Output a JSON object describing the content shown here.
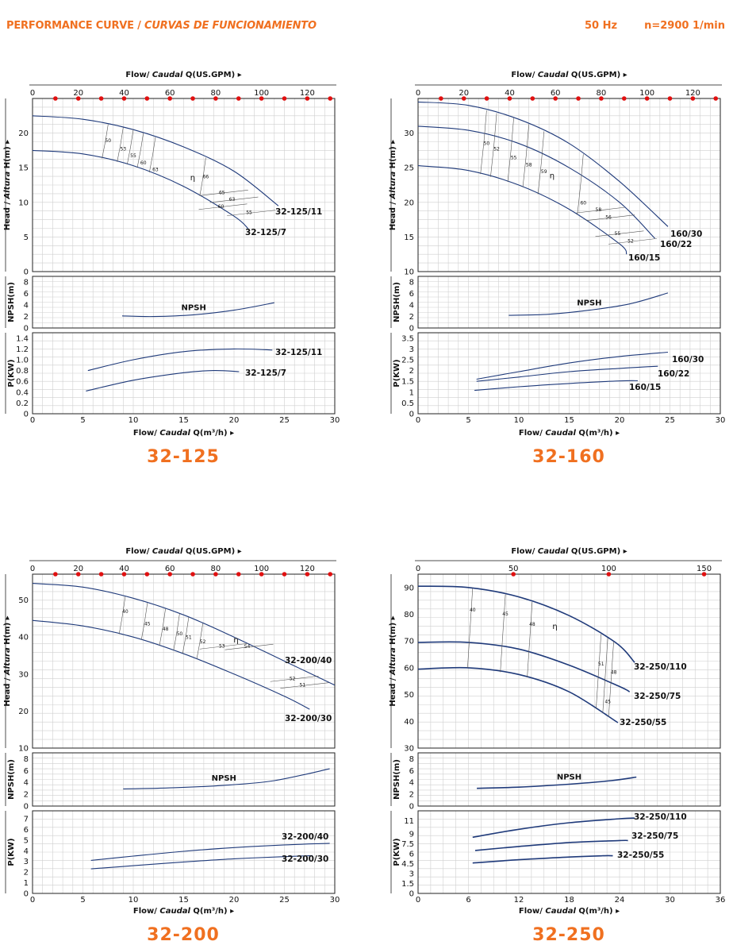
{
  "header": {
    "title": "PERFORMANCE CURVE",
    "title_es": "CURVAS DE FUNCIONAMIENTO",
    "freq": "50 Hz",
    "speed": "n=2900 1/min"
  },
  "colors": {
    "curve": "#1f3a7a",
    "accent": "#f07020",
    "grid": "#cfcfcf",
    "dot": "#e01010"
  },
  "chart_data": [
    {
      "type": "line",
      "title": "32-125",
      "top_axis": {
        "label_en": "Flow/",
        "label_es": "Caudal",
        "label_unit": "Q(US.GPM)",
        "ticks": [
          0,
          20,
          40,
          60,
          80,
          100,
          120
        ],
        "max": 132
      },
      "xlabel_en": "Flow/",
      "xlabel_es": "Caudal",
      "xlabel_unit": "Q(m³/h)",
      "xlim": [
        0,
        30
      ],
      "xticks": [
        0,
        5,
        10,
        15,
        20,
        25,
        30
      ],
      "head": {
        "ylabel_en": "Head /",
        "ylabel_es": "Altura",
        "ylabel_unit": "H(m)",
        "ylim": [
          0,
          25
        ],
        "yticks": [
          0,
          5,
          10,
          15,
          20
        ],
        "series": [
          {
            "name": "32-125/11",
            "x": [
              0,
              5,
              10,
              15,
              20,
              24.4
            ],
            "y": [
              22.5,
              22,
              20.5,
              18,
              14.5,
              9.5
            ]
          },
          {
            "name": "32-125/7",
            "x": [
              0,
              5,
              10,
              15,
              20,
              21.4
            ],
            "y": [
              17.5,
              17,
              15.3,
              12.3,
              8,
              6.2
            ]
          }
        ],
        "efficiency": [
          {
            "label": "50",
            "x": 7.5,
            "y": 18.7
          },
          {
            "label": "53",
            "x": 9.0,
            "y": 17.5
          },
          {
            "label": "55",
            "x": 10.0,
            "y": 16.5
          },
          {
            "label": "60",
            "x": 11.0,
            "y": 15.5
          },
          {
            "label": "63",
            "x": 12.2,
            "y": 14.5
          },
          {
            "label": "66",
            "x": 17.2,
            "y": 13.5
          },
          {
            "label": "65",
            "x": 18.8,
            "y": 11.2
          },
          {
            "label": "63",
            "x": 19.8,
            "y": 10.2
          },
          {
            "label": "60",
            "x": 18.7,
            "y": 9.2
          },
          {
            "label": "55",
            "x": 21.5,
            "y": 8.3
          },
          {
            "label": "η",
            "x": 15.9,
            "y": 13.2
          }
        ]
      },
      "npsh": {
        "ylabel": "NPSH(m)",
        "ylim": [
          0,
          9
        ],
        "yticks": [
          0,
          2,
          4,
          6,
          8
        ],
        "label": "NPSH",
        "x": [
          8.9,
          12,
          16,
          20,
          24
        ],
        "y": [
          2.1,
          2.0,
          2.3,
          3.1,
          4.4
        ]
      },
      "power": {
        "ylabel": "P(KW)",
        "ylim": [
          0,
          1.5
        ],
        "yticks": [
          0,
          0.2,
          0.4,
          0.6,
          0.8,
          1.0,
          1.2,
          1.4
        ],
        "tick_labels": [
          "0",
          "0.2",
          "0.4",
          "0.6",
          "0.8",
          "1.0",
          "1.2",
          "1.4"
        ],
        "series": [
          {
            "name": "32-125/11",
            "x": [
              5.5,
              10,
              15,
              20,
              23.8
            ],
            "y": [
              0.8,
              1.0,
              1.15,
              1.2,
              1.18
            ]
          },
          {
            "name": "32-125/7",
            "x": [
              5.3,
              10,
              15,
              18,
              20.5
            ],
            "y": [
              0.42,
              0.62,
              0.76,
              0.8,
              0.78
            ]
          }
        ]
      }
    },
    {
      "type": "line",
      "title": "32-160",
      "top_axis": {
        "label_en": "Flow/",
        "label_es": "Caudal",
        "label_unit": "Q(US.GPM)",
        "ticks": [
          0,
          20,
          40,
          60,
          80,
          100,
          120
        ],
        "max": 132
      },
      "xlabel_en": "Flow/",
      "xlabel_es": "Caudal",
      "xlabel_unit": "Q(m³/h)",
      "xlim": [
        0,
        30
      ],
      "xticks": [
        0,
        5,
        10,
        15,
        20,
        25,
        30
      ],
      "head": {
        "ylabel_en": "Head /",
        "ylabel_es": "Altura",
        "ylabel_unit": "H(m)",
        "ylim": [
          10,
          35
        ],
        "yticks": [
          10,
          15,
          20,
          25,
          30
        ],
        "series": [
          {
            "name": "160/30",
            "x": [
              0,
              5,
              10,
              15,
              20,
              24.8
            ],
            "y": [
              34.5,
              34,
              32,
              28.5,
              23,
              16.5
            ]
          },
          {
            "name": "160/22",
            "x": [
              0,
              5,
              10,
              15,
              20,
              23.5
            ],
            "y": [
              31,
              30.4,
              28.5,
              25,
              20,
              14.8
            ]
          },
          {
            "name": "160/15",
            "x": [
              0,
              5,
              10,
              15,
              20,
              20.7
            ],
            "y": [
              25.3,
              24.6,
              22.5,
              19,
              14,
              12.5
            ]
          }
        ],
        "efficiency": [
          {
            "label": "50",
            "x": 6.8,
            "y": 28.3
          },
          {
            "label": "52",
            "x": 7.8,
            "y": 27.5
          },
          {
            "label": "55",
            "x": 9.5,
            "y": 26.2
          },
          {
            "label": "58",
            "x": 11,
            "y": 25.2
          },
          {
            "label": "59",
            "x": 12.5,
            "y": 24.2
          },
          {
            "label": "60",
            "x": 16.4,
            "y": 19.7
          },
          {
            "label": "58",
            "x": 17.9,
            "y": 18.7
          },
          {
            "label": "56",
            "x": 18.9,
            "y": 17.6
          },
          {
            "label": "55",
            "x": 19.8,
            "y": 15.3
          },
          {
            "label": "52",
            "x": 21.1,
            "y": 14.2
          },
          {
            "label": "η",
            "x": 13.3,
            "y": 23.5
          }
        ]
      },
      "npsh": {
        "ylabel": "NPSH(m)",
        "ylim": [
          0,
          9
        ],
        "yticks": [
          0,
          2,
          4,
          6,
          8
        ],
        "label": "NPSH",
        "x": [
          9,
          13,
          17,
          21,
          24.8
        ],
        "y": [
          2.2,
          2.4,
          3.1,
          4.2,
          6.1
        ]
      },
      "power": {
        "ylabel": "P(KW)",
        "ylim": [
          0,
          3.75
        ],
        "yticks": [
          0,
          0.5,
          1,
          1.5,
          2,
          2.5,
          3,
          3.5
        ],
        "tick_labels": [
          "0",
          "0.5",
          "1",
          "1.5",
          "2",
          "2.5",
          "3",
          "3.5"
        ],
        "series": [
          {
            "name": "160/30",
            "x": [
              5.8,
              10,
              15,
              20,
              24.8
            ],
            "y": [
              1.6,
              1.95,
              2.35,
              2.65,
              2.85
            ]
          },
          {
            "name": "160/22",
            "x": [
              5.8,
              10,
              15,
              20,
              23.8
            ],
            "y": [
              1.5,
              1.7,
              1.95,
              2.1,
              2.2
            ]
          },
          {
            "name": "160/15",
            "x": [
              5.6,
              10,
              15,
              20,
              21.8
            ],
            "y": [
              1.08,
              1.25,
              1.4,
              1.52,
              1.53
            ]
          }
        ]
      }
    },
    {
      "type": "line",
      "title": "32-200",
      "top_axis": {
        "label_en": "Flow/",
        "label_es": "Caudal",
        "label_unit": "Q(US.GPM)",
        "ticks": [
          0,
          20,
          40,
          60,
          80,
          100,
          120
        ],
        "max": 132
      },
      "xlabel_en": "Flow/",
      "xlabel_es": "Caudal",
      "xlabel_unit": "Q(m³/h)",
      "xlim": [
        0,
        30
      ],
      "xticks": [
        0,
        5,
        10,
        15,
        20,
        25,
        30
      ],
      "head": {
        "ylabel_en": "Head /",
        "ylabel_es": "Altura",
        "ylabel_unit": "H(m)",
        "ylim": [
          10,
          57
        ],
        "yticks": [
          10,
          20,
          30,
          40,
          50
        ],
        "series": [
          {
            "name": "32-200/40",
            "x": [
              0,
              5,
              10,
              15,
              20,
              25,
              30
            ],
            "y": [
              54.5,
              53.5,
              50.5,
              46,
              40,
              33.5,
              27
            ]
          },
          {
            "name": "32-200/30",
            "x": [
              0,
              5,
              10,
              15,
              20,
              25,
              27.5
            ],
            "y": [
              44.5,
              43,
              40,
              35.5,
              30,
              24,
              20.5
            ]
          }
        ],
        "efficiency": [
          {
            "label": "40",
            "x": 9.2,
            "y": 46.5
          },
          {
            "label": "45",
            "x": 11.4,
            "y": 43.2
          },
          {
            "label": "48",
            "x": 13.2,
            "y": 41.8
          },
          {
            "label": "50",
            "x": 14.6,
            "y": 40.5
          },
          {
            "label": "51",
            "x": 15.5,
            "y": 39.5
          },
          {
            "label": "52",
            "x": 16.9,
            "y": 38.3
          },
          {
            "label": "53",
            "x": 18.8,
            "y": 37.2
          },
          {
            "label": "54",
            "x": 21.3,
            "y": 37.0
          },
          {
            "label": "52",
            "x": 25.8,
            "y": 28.4
          },
          {
            "label": "51",
            "x": 26.8,
            "y": 26.6
          },
          {
            "label": "η",
            "x": 20.2,
            "y": 38.5
          }
        ]
      },
      "npsh": {
        "ylabel": "NPSH(m)",
        "ylim": [
          0,
          9
        ],
        "yticks": [
          0,
          2,
          4,
          6,
          8
        ],
        "label": "NPSH",
        "x": [
          9,
          14,
          19,
          24,
          29.5
        ],
        "y": [
          2.9,
          3.1,
          3.5,
          4.3,
          6.3
        ]
      },
      "power": {
        "ylabel": "P(KW)",
        "ylim": [
          0,
          7.75
        ],
        "yticks": [
          0,
          1,
          2,
          3,
          4,
          5,
          6,
          7
        ],
        "tick_labels": [
          "0",
          "1",
          "2",
          "3",
          "4",
          "5",
          "6",
          "7"
        ],
        "series": [
          {
            "name": "32-200/40",
            "x": [
              5.8,
              10,
              15,
              20,
              25,
              29.5
            ],
            "y": [
              3.1,
              3.5,
              3.95,
              4.3,
              4.55,
              4.7
            ]
          },
          {
            "name": "32-200/30",
            "x": [
              5.8,
              10,
              15,
              20,
              25,
              27.8
            ],
            "y": [
              2.3,
              2.6,
              2.95,
              3.25,
              3.45,
              3.55
            ]
          }
        ]
      }
    },
    {
      "type": "line",
      "title": "32-250",
      "top_axis": {
        "label_en": "Flow/",
        "label_es": "Caudal",
        "label_unit": "Q(US.GPM)",
        "ticks": [
          0,
          50,
          100,
          150
        ],
        "max": 158.5
      },
      "xlabel_en": "Flow/",
      "xlabel_es": "Caudal",
      "xlabel_unit": "Q(m³/h)",
      "xlim": [
        0,
        36
      ],
      "xticks": [
        0,
        6,
        12,
        18,
        24,
        30,
        36
      ],
      "head": {
        "ylabel_en": "Head /",
        "ylabel_es": "Altura",
        "ylabel_unit": "H(m)",
        "ylim": [
          30,
          95
        ],
        "yticks": [
          30,
          40,
          50,
          60,
          70,
          80,
          90
        ],
        "series": [
          {
            "name": "32-250/110",
            "x": [
              0,
              6,
              12,
              18,
              23.5,
              25.8
            ],
            "y": [
              90.5,
              90,
              86.5,
              79.5,
              69.5,
              62
            ]
          },
          {
            "name": "32-250/75",
            "x": [
              0,
              6,
              12,
              18,
              24,
              25.2
            ],
            "y": [
              69.5,
              69.5,
              67,
              61,
              53,
              51
            ]
          },
          {
            "name": "32-250/55",
            "x": [
              0,
              6,
              12,
              18,
              23.8
            ],
            "y": [
              59.5,
              60,
              57.5,
              51,
              39.5
            ]
          }
        ],
        "efficiency": [
          {
            "label": "40",
            "x": 6.5,
            "y": 81
          },
          {
            "label": "45",
            "x": 10.4,
            "y": 79.5
          },
          {
            "label": "48",
            "x": 13.6,
            "y": 75.7
          },
          {
            "label": "η",
            "x": 16.3,
            "y": 74.5
          },
          {
            "label": "51",
            "x": 21.8,
            "y": 60.8
          },
          {
            "label": "48",
            "x": 23.3,
            "y": 57.7
          },
          {
            "label": "45",
            "x": 22.6,
            "y": 46.8
          }
        ]
      },
      "npsh": {
        "ylabel": "NPSH(m)",
        "ylim": [
          0,
          9
        ],
        "yticks": [
          0,
          2,
          4,
          6,
          8
        ],
        "label": "NPSH",
        "x": [
          7,
          12,
          18,
          23,
          26
        ],
        "y": [
          3.0,
          3.2,
          3.7,
          4.3,
          4.9
        ]
      },
      "power": {
        "ylabel": "P(KW)",
        "ylim": [
          0,
          12.5
        ],
        "yticks": [
          0,
          1.5,
          3,
          4.5,
          6,
          7.5,
          9,
          11
        ],
        "tick_labels": [
          "0",
          "1.5",
          "3",
          "4.5",
          "6",
          "7.5",
          "9",
          "11"
        ],
        "series": [
          {
            "name": "32-250/110",
            "x": [
              6.5,
              12,
              18,
              24,
              25.8
            ],
            "y": [
              8.5,
              9.7,
              10.7,
              11.3,
              11.4
            ]
          },
          {
            "name": "32-250/75",
            "x": [
              6.8,
              12,
              18,
              24,
              25
            ],
            "y": [
              6.5,
              7.1,
              7.7,
              8.0,
              8.0
            ]
          },
          {
            "name": "32-250/55",
            "x": [
              6.5,
              12,
              18,
              22,
              23.2
            ],
            "y": [
              4.6,
              5.1,
              5.5,
              5.7,
              5.7
            ]
          }
        ]
      }
    }
  ]
}
